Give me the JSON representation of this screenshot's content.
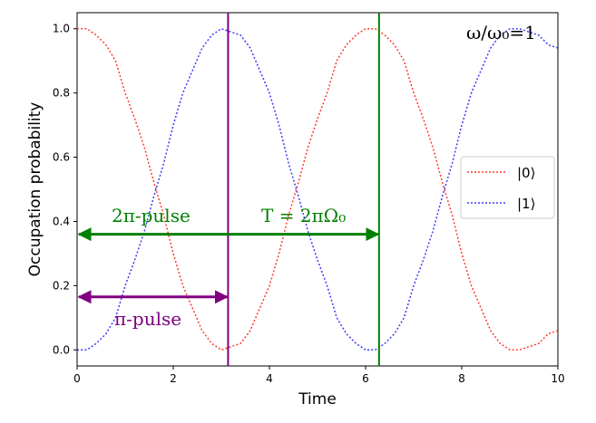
{
  "chart_data": {
    "type": "line",
    "xlabel": "Time",
    "ylabel": "Occupation probability",
    "xlim": [
      0,
      10
    ],
    "ylim": [
      -0.05,
      1.05
    ],
    "xticks": [
      0,
      2,
      4,
      6,
      8,
      10
    ],
    "yticks": [
      0.0,
      0.2,
      0.4,
      0.6,
      0.8,
      1.0
    ],
    "xtick_labels": [
      "0",
      "2",
      "4",
      "6",
      "8",
      "10"
    ],
    "ytick_labels": [
      "0.0",
      "0.2",
      "0.4",
      "0.6",
      "0.8",
      "1.0"
    ],
    "legend_position": "right",
    "series": [
      {
        "name": "|0⟩",
        "color": "#ff3b30",
        "style": "dotted",
        "x": [
          0,
          0.2,
          0.4,
          0.6,
          0.8,
          1.0,
          1.2,
          1.4,
          1.6,
          1.8,
          2.0,
          2.2,
          2.4,
          2.6,
          2.8,
          3.0,
          3.2,
          3.4,
          3.6,
          3.8,
          4.0,
          4.2,
          4.4,
          4.6,
          4.8,
          5.0,
          5.2,
          5.4,
          5.6,
          5.8,
          6.0,
          6.2,
          6.4,
          6.6,
          6.8,
          7.0,
          7.2,
          7.4,
          7.6,
          7.8,
          8.0,
          8.2,
          8.4,
          8.6,
          8.8,
          9.0,
          9.2,
          9.4,
          9.6,
          9.8,
          10.0
        ],
        "y": [
          1.0,
          1.0,
          0.98,
          0.95,
          0.9,
          0.8,
          0.72,
          0.63,
          0.52,
          0.42,
          0.3,
          0.2,
          0.13,
          0.06,
          0.02,
          0.0,
          0.01,
          0.02,
          0.06,
          0.13,
          0.2,
          0.3,
          0.42,
          0.52,
          0.63,
          0.72,
          0.8,
          0.9,
          0.95,
          0.98,
          1.0,
          1.0,
          0.98,
          0.95,
          0.9,
          0.8,
          0.72,
          0.63,
          0.52,
          0.42,
          0.3,
          0.2,
          0.13,
          0.06,
          0.02,
          0.0,
          0.0,
          0.01,
          0.02,
          0.05,
          0.06
        ]
      },
      {
        "name": "|1⟩",
        "color": "#3b3bff",
        "style": "dotted",
        "x": [
          0,
          0.2,
          0.4,
          0.6,
          0.8,
          1.0,
          1.2,
          1.4,
          1.6,
          1.8,
          2.0,
          2.2,
          2.4,
          2.6,
          2.8,
          3.0,
          3.2,
          3.4,
          3.6,
          3.8,
          4.0,
          4.2,
          4.4,
          4.6,
          4.8,
          5.0,
          5.2,
          5.4,
          5.6,
          5.8,
          6.0,
          6.2,
          6.4,
          6.6,
          6.8,
          7.0,
          7.2,
          7.4,
          7.6,
          7.8,
          8.0,
          8.2,
          8.4,
          8.6,
          8.8,
          9.0,
          9.2,
          9.4,
          9.6,
          9.8,
          10.0
        ],
        "y": [
          0.0,
          0.0,
          0.02,
          0.05,
          0.1,
          0.2,
          0.28,
          0.37,
          0.48,
          0.58,
          0.7,
          0.8,
          0.87,
          0.94,
          0.98,
          1.0,
          0.99,
          0.98,
          0.94,
          0.87,
          0.8,
          0.7,
          0.58,
          0.48,
          0.37,
          0.28,
          0.2,
          0.1,
          0.05,
          0.02,
          0.0,
          0.0,
          0.02,
          0.05,
          0.1,
          0.2,
          0.28,
          0.37,
          0.48,
          0.58,
          0.7,
          0.8,
          0.87,
          0.94,
          0.98,
          1.0,
          1.0,
          0.99,
          0.98,
          0.95,
          0.94
        ]
      }
    ],
    "vlines": [
      {
        "x": 3.14,
        "color": "#800080"
      },
      {
        "x": 6.28,
        "color": "#008000"
      }
    ],
    "arrows": [
      {
        "x1": 0,
        "x2": 6.28,
        "y": 0.36,
        "color": "#008000"
      },
      {
        "x1": 0,
        "x2": 3.14,
        "y": 0.165,
        "color": "#800080"
      }
    ],
    "annotations": {
      "two_pi_pulse": "2π-pulse",
      "period": "T = 2πΩ₀",
      "pi_pulse": "π-pulse",
      "ratio": "ω/ω₀=1"
    }
  }
}
